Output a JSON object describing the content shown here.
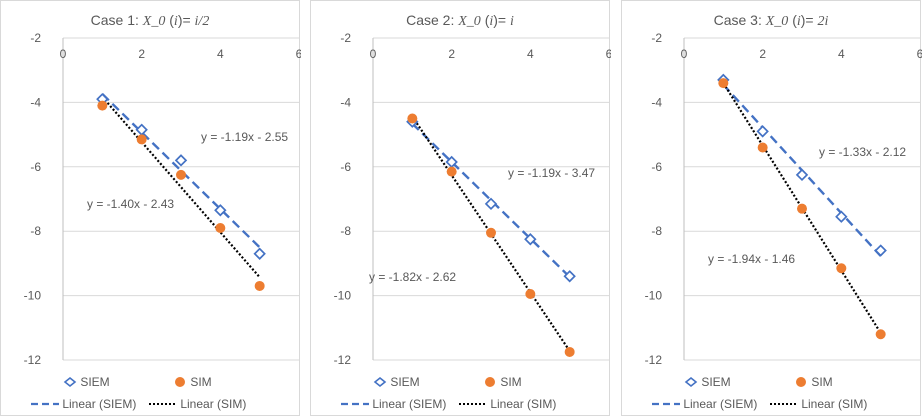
{
  "chart_data": [
    {
      "type": "scatter",
      "title": {
        "prefix": "Case 1: ",
        "var": "X_0",
        "mid": " (",
        "idx": "i",
        "close": ")= ",
        "value": "i/2"
      },
      "xlim": [
        0,
        6
      ],
      "ylim": [
        -12,
        -2
      ],
      "xticks": [
        "0",
        "2",
        "4",
        "6"
      ],
      "yticks": [
        "-2",
        "-4",
        "-6",
        "-8",
        "-10",
        "-12"
      ],
      "series": [
        {
          "name": "SIEM",
          "color": "#4472c4",
          "marker": "diamond-open",
          "x": [
            1,
            2,
            3,
            4,
            5
          ],
          "y": [
            -3.9,
            -4.85,
            -5.8,
            -7.35,
            -8.7
          ]
        },
        {
          "name": "SIM",
          "color": "#ed7d31",
          "marker": "circle",
          "x": [
            1,
            2,
            3,
            4,
            5
          ],
          "y": [
            -4.1,
            -5.15,
            -6.25,
            -7.9,
            -9.7
          ]
        }
      ],
      "trendlines": [
        {
          "name": "Linear (SIEM)",
          "color": "#4472c4",
          "style": "dashed",
          "slope": -1.19,
          "intercept": -2.55,
          "equation": "y = -1.19x - 2.55"
        },
        {
          "name": "Linear (SIM)",
          "color": "#000000",
          "style": "dotted",
          "slope": -1.4,
          "intercept": -2.43,
          "equation": "y = -1.40x - 2.43"
        }
      ]
    },
    {
      "type": "scatter",
      "title": {
        "prefix": "Case 2: ",
        "var": "X_0",
        "mid": " (",
        "idx": "i",
        "close": ")= ",
        "value": "i"
      },
      "xlim": [
        0,
        6
      ],
      "ylim": [
        -12,
        -2
      ],
      "xticks": [
        "0",
        "2",
        "4",
        "6"
      ],
      "yticks": [
        "-2",
        "-4",
        "-6",
        "-8",
        "-10",
        "-12"
      ],
      "series": [
        {
          "name": "SIEM",
          "color": "#4472c4",
          "marker": "diamond-open",
          "x": [
            1,
            2,
            3,
            4,
            5
          ],
          "y": [
            -4.6,
            -5.85,
            -7.15,
            -8.25,
            -9.4
          ]
        },
        {
          "name": "SIM",
          "color": "#ed7d31",
          "marker": "circle",
          "x": [
            1,
            2,
            3,
            4,
            5
          ],
          "y": [
            -4.5,
            -6.15,
            -8.05,
            -9.95,
            -11.75
          ]
        }
      ],
      "trendlines": [
        {
          "name": "Linear (SIEM)",
          "color": "#4472c4",
          "style": "dashed",
          "slope": -1.19,
          "intercept": -3.47,
          "equation": "y = -1.19x - 3.47"
        },
        {
          "name": "Linear (SIM)",
          "color": "#000000",
          "style": "dotted",
          "slope": -1.82,
          "intercept": -2.62,
          "equation": "y = -1.82x - 2.62"
        }
      ]
    },
    {
      "type": "scatter",
      "title": {
        "prefix": "Case 3: ",
        "var": "X_0",
        "mid": " (",
        "idx": "i",
        "close": ")= ",
        "value": "2i"
      },
      "xlim": [
        0,
        6
      ],
      "ylim": [
        -12,
        -2
      ],
      "xticks": [
        "0",
        "2",
        "4",
        "6"
      ],
      "yticks": [
        "-2",
        "-4",
        "-6",
        "-8",
        "-10",
        "-12"
      ],
      "series": [
        {
          "name": "SIEM",
          "color": "#4472c4",
          "marker": "diamond-open",
          "x": [
            1,
            2,
            3,
            4,
            5
          ],
          "y": [
            -3.3,
            -4.9,
            -6.25,
            -7.55,
            -8.6
          ]
        },
        {
          "name": "SIM",
          "color": "#ed7d31",
          "marker": "circle",
          "x": [
            1,
            2,
            3,
            4,
            5
          ],
          "y": [
            -3.4,
            -5.4,
            -7.3,
            -9.15,
            -11.2
          ]
        }
      ],
      "trendlines": [
        {
          "name": "Linear (SIEM)",
          "color": "#4472c4",
          "style": "dashed",
          "slope": -1.33,
          "intercept": -2.12,
          "equation": "y = -1.33x - 2.12"
        },
        {
          "name": "Linear (SIM)",
          "color": "#000000",
          "style": "dotted",
          "slope": -1.94,
          "intercept": -1.46,
          "equation": "y = -1.94x - 1.46"
        }
      ]
    }
  ]
}
